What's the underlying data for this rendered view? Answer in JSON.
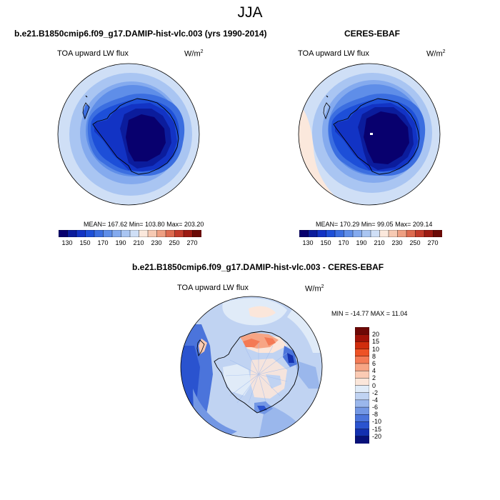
{
  "figure": {
    "title": "JJA"
  },
  "panels": [
    {
      "id": "model",
      "title": "b.e21.B1850cmip6.f09_g17.DAMIP-hist-vlc.003 (yrs 1990-2014)",
      "variable": "TOA upward LW flux",
      "units_base": "W/m",
      "units_exp": "2",
      "stats": "MEAN= 167.62  Min= 103.80  Max= 203.20"
    },
    {
      "id": "obs",
      "title": "CERES-EBAF",
      "variable": "TOA upward LW flux",
      "units_base": "W/m",
      "units_exp": "2",
      "stats": "MEAN= 170.29  Min= 99.05  Max= 209.14"
    },
    {
      "id": "diff",
      "title": "b.e21.B1850cmip6.f09_g17.DAMIP-hist-vlc.003 - CERES-EBAF",
      "variable": "TOA upward LW flux",
      "units_base": "W/m",
      "units_exp": "2",
      "stats": "MIN = -14.77 MAX =  11.04"
    }
  ],
  "colorbars": {
    "abs": {
      "levels": [
        130,
        140,
        150,
        160,
        170,
        180,
        190,
        200,
        210,
        220,
        230,
        240,
        250,
        260,
        270
      ],
      "labels": [
        "130",
        "150",
        "170",
        "190",
        "210",
        "230",
        "250",
        "270"
      ],
      "colors": [
        "#08006e",
        "#0b1c9c",
        "#1233c4",
        "#1d4fd8",
        "#3b6ee0",
        "#5f8ee8",
        "#84aaee",
        "#a9c5f2",
        "#cfdff6",
        "#fbe8dc",
        "#f6c9b2",
        "#ee9f82",
        "#dd6a4f",
        "#c23a2a",
        "#9c1a12",
        "#6b0a06"
      ]
    },
    "diff": {
      "levels": [
        -20,
        -15,
        -10,
        -8,
        -6,
        -4,
        -2,
        0,
        2,
        4,
        6,
        8,
        10,
        15,
        20
      ],
      "labels": [
        "20",
        "15",
        "10",
        "8",
        "6",
        "4",
        "2",
        "0",
        "-2",
        "-4",
        "-6",
        "-8",
        "-10",
        "-15",
        "-20"
      ],
      "colors": [
        "#6e0806",
        "#a11208",
        "#d02d0d",
        "#ee5225",
        "#f47a55",
        "#f7a585",
        "#fbcbb4",
        "#fbe6da",
        "#e0ebf8",
        "#c0d3f2",
        "#9ab7ec",
        "#7397e4",
        "#4b74db",
        "#2a53cf",
        "#1330b0",
        "#07117a"
      ]
    }
  }
}
